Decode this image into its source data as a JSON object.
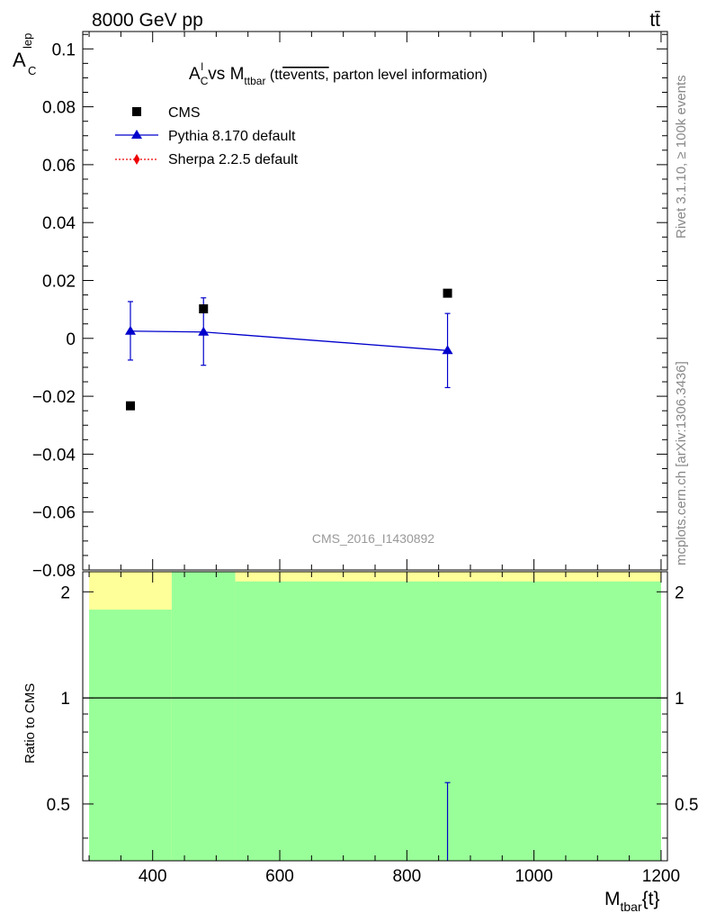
{
  "header": {
    "left": "8000 GeV pp",
    "right": "tt̄"
  },
  "side": {
    "rivet": "Rivet 3.1.10, ≥ 100k events",
    "mcplots": "mcplots.cern.ch [arXiv:1306.3436]"
  },
  "plot_title": {
    "a": "A",
    "a_sup": "l",
    "a_sub": "C",
    "vs": " vs M",
    "m_sub": "ttbar",
    "paren_open": " (tt",
    "overlined": "events,",
    "rest": " parton level information)"
  },
  "y_label": {
    "main": "A",
    "sub": "C",
    "sup": "lep"
  },
  "ratio_label": "Ratio to CMS",
  "x_label": {
    "main": "M",
    "sub": "tbar",
    "rest": "{t}"
  },
  "watermark": "CMS_2016_I1430892",
  "legend": [
    {
      "label": "CMS",
      "color": "#000000",
      "marker": "square",
      "line": "none"
    },
    {
      "label": "Pythia 8.170 default",
      "color": "#0000cc",
      "marker": "triangle",
      "line": "solid"
    },
    {
      "label": "Sherpa 2.2.5 default",
      "color": "#ee0000",
      "marker": "diamond",
      "line": "dotted"
    }
  ],
  "chart_data": {
    "type": "scatter",
    "xlim": [
      290,
      1210
    ],
    "upper": {
      "ylim": [
        -0.08,
        0.106
      ],
      "yticks": [
        "0.1",
        "0.08",
        "0.06",
        "0.04",
        "0.02",
        "0",
        "−0.02",
        "−0.04",
        "−0.06",
        "−0.08"
      ],
      "ytick_values": [
        0.1,
        0.08,
        0.06,
        0.04,
        0.02,
        0,
        -0.02,
        -0.04,
        -0.06,
        -0.08
      ]
    },
    "lower": {
      "log_scale": true,
      "ylim": [
        0.345,
        2.28
      ],
      "yticks": [
        "2",
        "1",
        "0.5"
      ],
      "ytick_values": [
        2,
        1,
        0.5
      ]
    },
    "xticks": [
      "400",
      "600",
      "800",
      "1000",
      "1200"
    ],
    "xtick_values": [
      400,
      600,
      800,
      1000,
      1200
    ],
    "series": [
      {
        "name": "CMS",
        "points": [
          {
            "x": 365,
            "y": -0.0233
          },
          {
            "x": 480,
            "y": 0.0102
          },
          {
            "x": 864,
            "y": 0.0156
          }
        ]
      },
      {
        "name": "Pythia 8.170 default",
        "points": [
          {
            "x": 365,
            "y": 0.0025,
            "err_low": 0.01,
            "err_high": 0.0102
          },
          {
            "x": 480,
            "y": 0.0022,
            "err_low": 0.0115,
            "err_high": 0.0118
          },
          {
            "x": 864,
            "y": -0.0042,
            "err_low": 0.0128,
            "err_high": 0.0128
          }
        ]
      },
      {
        "name": "Sherpa 2.2.5 default",
        "points": []
      }
    ],
    "ratio_bands": [
      {
        "x_low": 300,
        "x_high": 430,
        "yellow": [
          0.0,
          2.3
        ],
        "green": [
          0.0,
          1.78
        ]
      },
      {
        "x_low": 430,
        "x_high": 530,
        "yellow": [
          0.0,
          2.3
        ],
        "green": [
          0.0,
          2.3
        ]
      },
      {
        "x_low": 530,
        "x_high": 1200,
        "yellow": [
          0.0,
          2.3
        ],
        "green": [
          0.0,
          2.14
        ]
      }
    ],
    "ratio_reference": 1,
    "ratio_errorbar": {
      "x": 864,
      "y_low": 0.3,
      "y_high": 0.575
    },
    "band_colors": {
      "yellow": "#ffff99",
      "green": "#99ff99"
    }
  }
}
